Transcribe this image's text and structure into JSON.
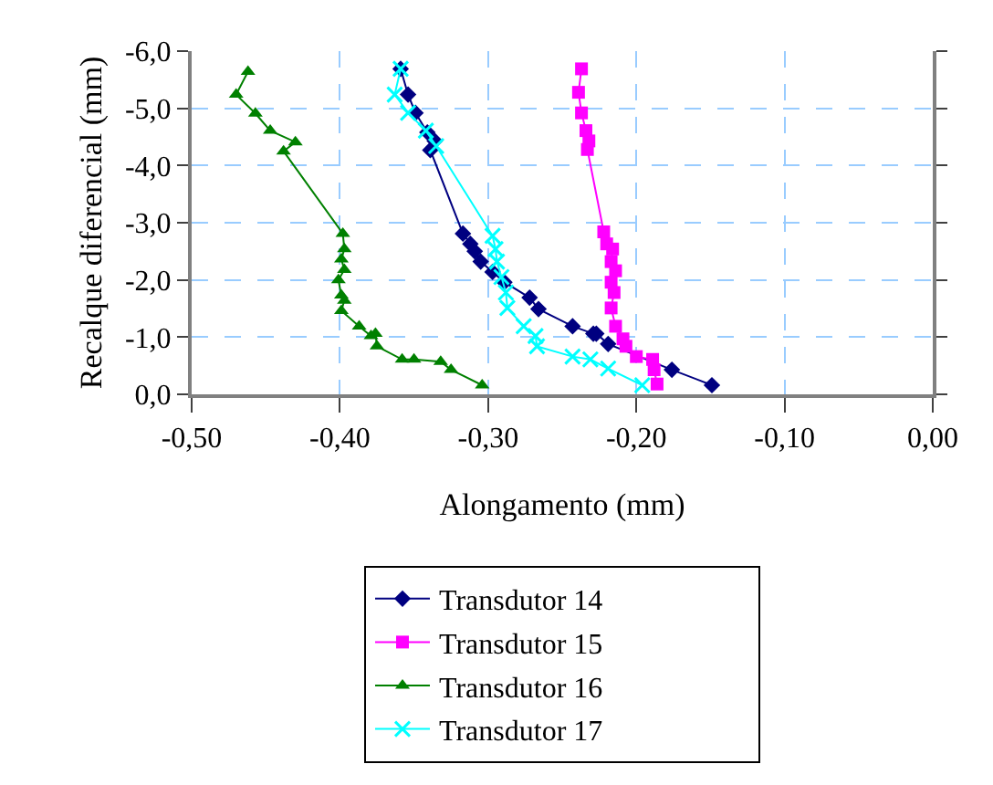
{
  "chart_data": {
    "type": "line",
    "xlabel": "Alongamento (mm)",
    "ylabel": "Recalque diferencial (mm)",
    "xlim": [
      -0.5,
      0
    ],
    "xticks": [
      {
        "value": -0.5,
        "label": "-0,50"
      },
      {
        "value": -0.4,
        "label": "-0,40"
      },
      {
        "value": -0.3,
        "label": "-0,30"
      },
      {
        "value": -0.2,
        "label": "-0,20"
      },
      {
        "value": -0.1,
        "label": "-0,10"
      },
      {
        "value": 0,
        "label": "0,00"
      }
    ],
    "ylim": [
      0,
      -6
    ],
    "yticks": [
      {
        "value": 0,
        "label": "0,0"
      },
      {
        "value": -1,
        "label": "-1,0"
      },
      {
        "value": -2,
        "label": "-2,0"
      },
      {
        "value": -3,
        "label": "-3,0"
      },
      {
        "value": -4,
        "label": "-4,0"
      },
      {
        "value": -5,
        "label": "-5,0"
      },
      {
        "value": -6,
        "label": "-6,0"
      }
    ],
    "grid": true,
    "legend": "bottom",
    "line_style": "solid",
    "series": [
      {
        "name": "Transdutor 14",
        "color": "#000080",
        "marker": "diamond",
        "x": [
          -0.359,
          -0.354,
          -0.349,
          -0.341,
          -0.336,
          -0.339,
          -0.317,
          -0.312,
          -0.309,
          -0.305,
          -0.297,
          -0.289,
          -0.272,
          -0.266,
          -0.243,
          -0.229,
          -0.227,
          -0.219,
          -0.176,
          -0.149
        ],
        "values": [
          -5.69,
          -5.24,
          -4.92,
          -4.58,
          -4.43,
          -4.27,
          -2.81,
          -2.63,
          -2.5,
          -2.32,
          -2.14,
          -1.96,
          -1.69,
          -1.49,
          -1.19,
          -1.06,
          -1.06,
          -0.88,
          -0.43,
          -0.16
        ]
      },
      {
        "name": "Transdutor 15",
        "color": "#ff00ff",
        "marker": "square",
        "x": [
          -0.237,
          -0.239,
          -0.237,
          -0.234,
          -0.232,
          -0.233,
          -0.222,
          -0.22,
          -0.216,
          -0.217,
          -0.214,
          -0.217,
          -0.215,
          -0.217,
          -0.214,
          -0.209,
          -0.207,
          -0.2,
          -0.189,
          -0.188,
          -0.186
        ],
        "values": [
          -5.69,
          -5.28,
          -4.92,
          -4.61,
          -4.43,
          -4.28,
          -2.84,
          -2.63,
          -2.54,
          -2.32,
          -2.16,
          -1.96,
          -1.78,
          -1.51,
          -1.19,
          -0.97,
          -0.84,
          -0.66,
          -0.61,
          -0.43,
          -0.18
        ]
      },
      {
        "name": "Transdutor 16",
        "color": "#008000",
        "marker": "triangle",
        "x": [
          -0.462,
          -0.47,
          -0.457,
          -0.447,
          -0.43,
          -0.438,
          -0.398,
          -0.397,
          -0.399,
          -0.397,
          -0.401,
          -0.399,
          -0.397,
          -0.399,
          -0.387,
          -0.379,
          -0.376,
          -0.375,
          -0.358,
          -0.35,
          -0.332,
          -0.325,
          -0.304
        ],
        "values": [
          -5.64,
          -5.24,
          -4.91,
          -4.61,
          -4.41,
          -4.25,
          -2.81,
          -2.54,
          -2.36,
          -2.18,
          -2.0,
          -1.73,
          -1.64,
          -1.46,
          -1.19,
          -1.02,
          -1.06,
          -0.84,
          -0.61,
          -0.61,
          -0.57,
          -0.43,
          -0.16
        ]
      },
      {
        "name": "Transdutor 17",
        "color": "#00ffff",
        "marker": "cross",
        "x": [
          -0.359,
          -0.363,
          -0.354,
          -0.342,
          -0.335,
          -0.297,
          -0.295,
          -0.294,
          -0.291,
          -0.288,
          -0.287,
          -0.276,
          -0.268,
          -0.267,
          -0.243,
          -0.231,
          -0.219,
          -0.196
        ],
        "values": [
          -5.69,
          -5.24,
          -4.92,
          -4.61,
          -4.34,
          -2.77,
          -2.54,
          -2.32,
          -2.05,
          -1.78,
          -1.51,
          -1.19,
          -1.02,
          -0.84,
          -0.66,
          -0.61,
          -0.45,
          -0.16
        ]
      }
    ]
  }
}
